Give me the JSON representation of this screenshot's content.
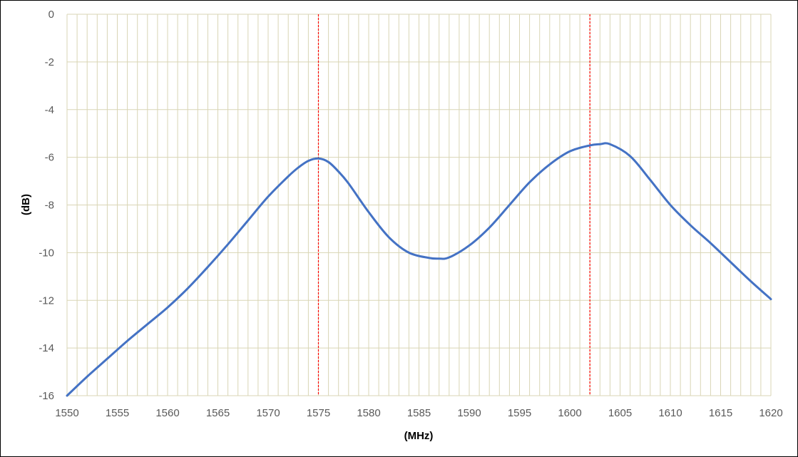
{
  "chart_data": {
    "type": "line",
    "title": "",
    "xlabel": "(MHz)",
    "ylabel": "(dB)",
    "xlim": [
      1550,
      1620
    ],
    "ylim": [
      -16,
      0
    ],
    "x_ticks": [
      1550,
      1555,
      1560,
      1565,
      1570,
      1575,
      1580,
      1585,
      1590,
      1595,
      1600,
      1605,
      1610,
      1615,
      1620
    ],
    "y_ticks": [
      0,
      -2,
      -4,
      -6,
      -8,
      -10,
      -12,
      -14,
      -16
    ],
    "x_minor_step": 1,
    "y_major_step": 2,
    "grid": true,
    "legend": "none",
    "colors": {
      "series": "#4472c4",
      "grid": "#d9d5b5",
      "markers": "#ff0000"
    },
    "series": [
      {
        "x": [
          1550,
          1552,
          1554,
          1556,
          1558,
          1560,
          1562,
          1564,
          1566,
          1568,
          1570,
          1572,
          1573,
          1574,
          1575,
          1576,
          1577,
          1578,
          1580,
          1582,
          1584,
          1586,
          1587,
          1588,
          1590,
          1592,
          1594,
          1596,
          1598,
          1600,
          1602,
          1603,
          1604,
          1606,
          1608,
          1610,
          1612,
          1614,
          1616,
          1618,
          1620
        ],
        "y": [
          -16.0,
          -15.2,
          -14.45,
          -13.7,
          -13.0,
          -12.3,
          -11.5,
          -10.6,
          -9.65,
          -8.65,
          -7.65,
          -6.8,
          -6.43,
          -6.15,
          -6.05,
          -6.2,
          -6.6,
          -7.1,
          -8.3,
          -9.35,
          -10.0,
          -10.22,
          -10.25,
          -10.2,
          -9.7,
          -8.95,
          -8.0,
          -7.05,
          -6.3,
          -5.75,
          -5.5,
          -5.45,
          -5.45,
          -5.95,
          -6.95,
          -8.0,
          -8.85,
          -9.6,
          -10.4,
          -11.2,
          -11.95
        ]
      }
    ],
    "vertical_markers": [
      1575,
      1602
    ]
  }
}
